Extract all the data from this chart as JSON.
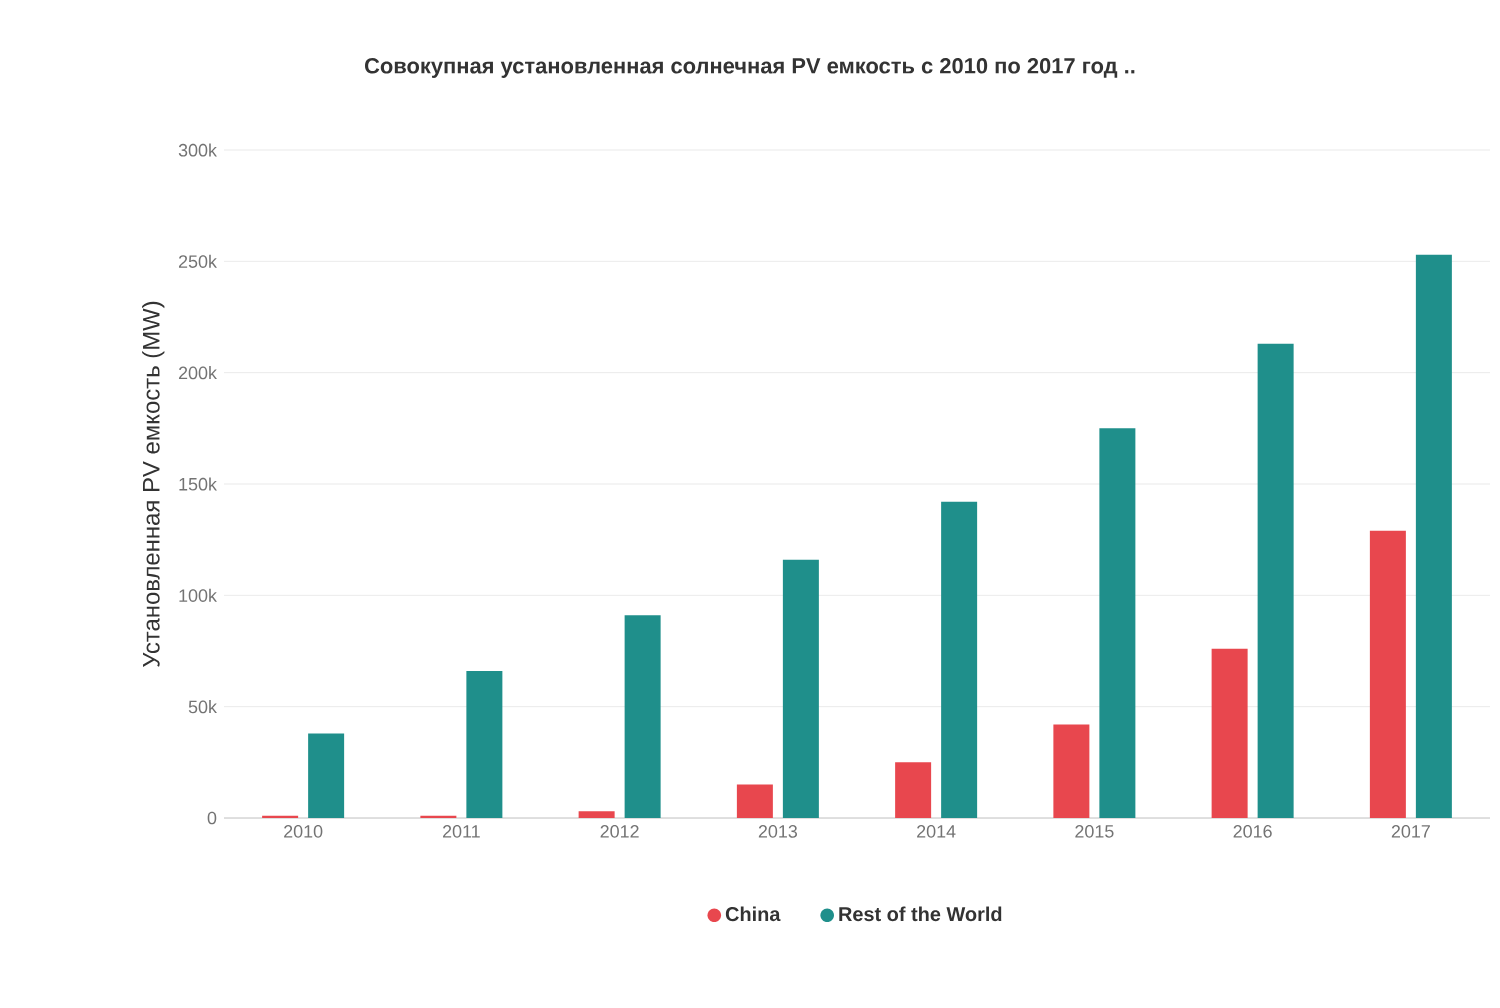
{
  "chart_data": {
    "type": "bar",
    "title": "Совокупная установленная солнечная PV емкость с 2010 по 2017 год ..",
    "ylabel": "Установленная PV емкость (MW)",
    "categories": [
      "2010",
      "2011",
      "2012",
      "2013",
      "2014",
      "2015",
      "2016",
      "2017"
    ],
    "series": [
      {
        "name": "China",
        "color": "#e8474e",
        "values": [
          1000,
          1000,
          3000,
          15000,
          25000,
          42000,
          76000,
          129000
        ]
      },
      {
        "name": "Rest of the World",
        "color": "#1f8f8b",
        "values": [
          38000,
          66000,
          91000,
          116000,
          142000,
          175000,
          213000,
          253000
        ]
      }
    ],
    "ylim": [
      0,
      300000
    ],
    "yticks": [
      0,
      {
        "value": 50000,
        "label": "50k"
      },
      {
        "value": 100000,
        "label": "100k"
      },
      {
        "value": 150000,
        "label": "150k"
      },
      {
        "value": 200000,
        "label": "200k"
      },
      {
        "value": 250000,
        "label": "250k"
      },
      {
        "value": 300000,
        "label": "300k"
      }
    ],
    "grid": "y",
    "legend": "bottom"
  }
}
